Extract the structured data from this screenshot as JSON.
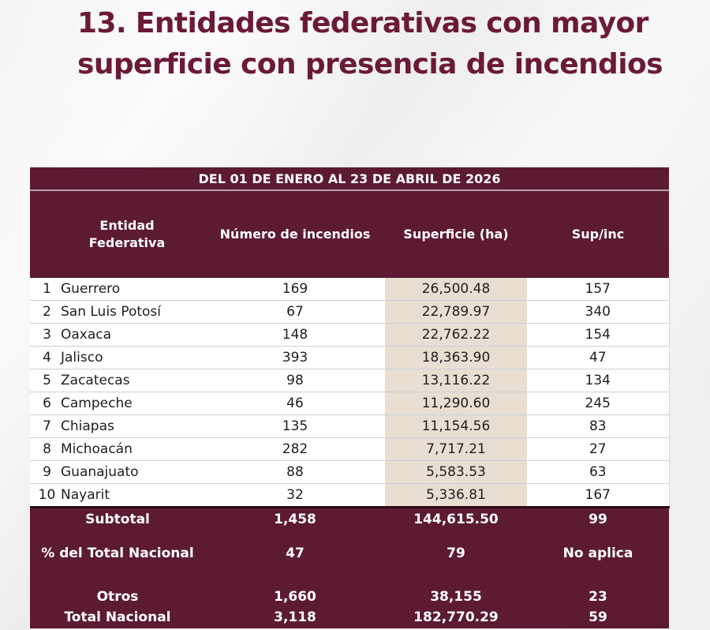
{
  "title": {
    "line1": "13. Entidades federativas con mayor",
    "line2": "superficie con presencia de incendios"
  },
  "colors": {
    "maroon": "#5c1a33",
    "title": "#6b1a35",
    "highlight": "#e8dfd2"
  },
  "table": {
    "period": "DEL 01 DE ENERO AL 23 DE ABRIL DE 2026",
    "headers": {
      "entidad_line1": "Entidad",
      "entidad_line2": "Federativa",
      "numero": "Número de incendios",
      "superficie": "Superficie (ha)",
      "ratio": "Sup/inc"
    },
    "rows": [
      {
        "rank": "1",
        "entidad": "Guerrero",
        "numero": "169",
        "superficie": "26,500.48",
        "ratio": "157"
      },
      {
        "rank": "2",
        "entidad": "San Luis Potosí",
        "numero": "67",
        "superficie": "22,789.97",
        "ratio": "340"
      },
      {
        "rank": "3",
        "entidad": "Oaxaca",
        "numero": "148",
        "superficie": "22,762.22",
        "ratio": "154"
      },
      {
        "rank": "4",
        "entidad": "Jalisco",
        "numero": "393",
        "superficie": "18,363.90",
        "ratio": "47"
      },
      {
        "rank": "5",
        "entidad": "Zacatecas",
        "numero": "98",
        "superficie": "13,116.22",
        "ratio": "134"
      },
      {
        "rank": "6",
        "entidad": "Campeche",
        "numero": "46",
        "superficie": "11,290.60",
        "ratio": "245"
      },
      {
        "rank": "7",
        "entidad": "Chiapas",
        "numero": "135",
        "superficie": "11,154.56",
        "ratio": "83"
      },
      {
        "rank": "8",
        "entidad": "Michoacán",
        "numero": "282",
        "superficie": "7,717.21",
        "ratio": "27"
      },
      {
        "rank": "9",
        "entidad": "Guanajuato",
        "numero": "88",
        "superficie": "5,583.53",
        "ratio": "63"
      },
      {
        "rank": "10",
        "entidad": "Nayarit",
        "numero": "32",
        "superficie": "5,336.81",
        "ratio": "167"
      }
    ],
    "summary": [
      {
        "label": "Subtotal",
        "numero": "1,458",
        "superficie": "144,615.50",
        "ratio": "99"
      },
      {
        "label": "% del Total Nacional",
        "numero": "47",
        "superficie": "79",
        "ratio": "No aplica"
      },
      {
        "label": "Otros",
        "numero": "1,660",
        "superficie": "38,155",
        "ratio": "23"
      },
      {
        "label": "Total Nacional",
        "numero": "3,118",
        "superficie": "182,770.29",
        "ratio": "59"
      }
    ]
  }
}
